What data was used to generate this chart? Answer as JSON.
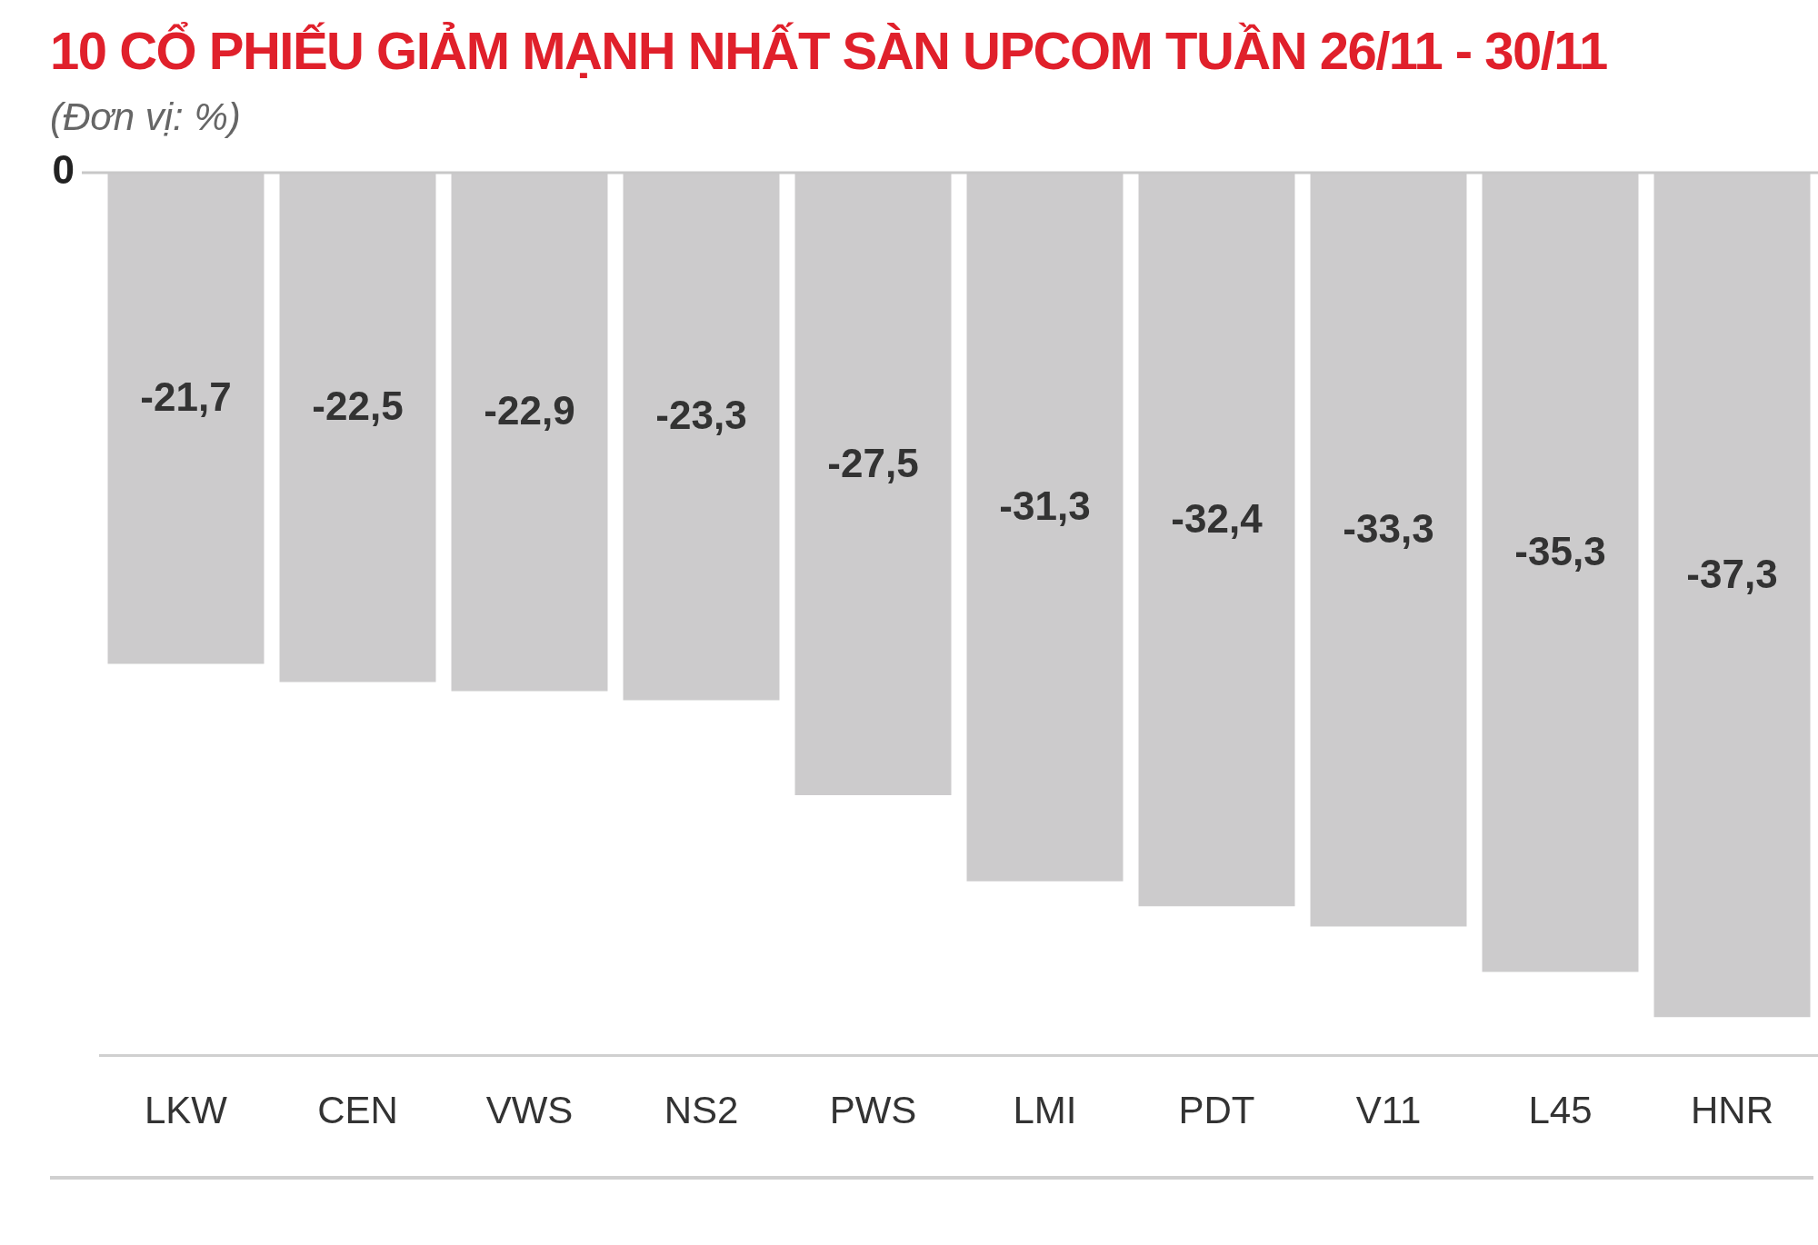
{
  "chart_data": {
    "type": "bar",
    "title": "10 CỔ PHIẾU GIẢM MẠNH NHẤT SÀN UPCOM TUẦN 26/11 - 30/11",
    "subtitle": "(Đơn vị: %)",
    "categories": [
      "LKW",
      "CEN",
      "VWS",
      "NS2",
      "PWS",
      "LMI",
      "PDT",
      "V11",
      "L45",
      "HNR"
    ],
    "values": [
      -21.7,
      -22.5,
      -22.9,
      -23.3,
      -27.5,
      -31.3,
      -32.4,
      -33.3,
      -35.3,
      -37.3
    ],
    "value_labels": [
      "-21,7",
      "-22,5",
      "-22,9",
      "-23,3",
      "-27,5",
      "-31,3",
      "-32,4",
      "-33,3",
      "-35,3",
      "-37,3"
    ],
    "color": "#cccbcc",
    "ylim": [
      -39,
      0
    ],
    "ref_lines": [
      {
        "axis": "y",
        "value": 0,
        "label": "0",
        "color": "#c8c8c8"
      }
    ]
  }
}
